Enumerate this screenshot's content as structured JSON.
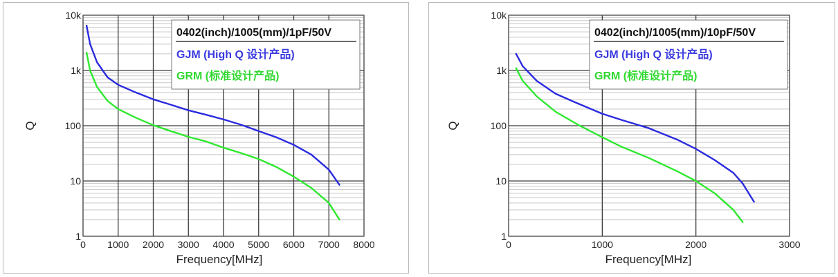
{
  "chart_data": [
    {
      "type": "line",
      "title": "0402(inch)/1005(mm)/1pF/50V",
      "xlabel": "Frequency[MHz]",
      "ylabel": "Q",
      "xlim": [
        0,
        8000
      ],
      "ylim": [
        1,
        10000
      ],
      "yscale": "log",
      "x_ticks": [
        "0",
        "1000",
        "2000",
        "3000",
        "4000",
        "5000",
        "6000",
        "7000",
        "8000"
      ],
      "y_ticks": [
        "1",
        "10",
        "100",
        "1k",
        "10k"
      ],
      "grid": true,
      "legend_position": "top-right",
      "series": [
        {
          "name": "GJM (High Q 设计产品)",
          "color": "#2a2ae0",
          "points": [
            [
              100,
              6500
            ],
            [
              200,
              3000
            ],
            [
              400,
              1400
            ],
            [
              700,
              750
            ],
            [
              1000,
              550
            ],
            [
              1500,
              400
            ],
            [
              2000,
              300
            ],
            [
              2500,
              240
            ],
            [
              3000,
              190
            ],
            [
              3500,
              158
            ],
            [
              4000,
              130
            ],
            [
              4500,
              104
            ],
            [
              5000,
              80
            ],
            [
              5500,
              62
            ],
            [
              6000,
              45
            ],
            [
              6500,
              30
            ],
            [
              7000,
              16
            ],
            [
              7300,
              8.5
            ]
          ]
        },
        {
          "name": "GRM (标准设计产品)",
          "color": "#2ee82e",
          "points": [
            [
              100,
              2100
            ],
            [
              200,
              1000
            ],
            [
              400,
              500
            ],
            [
              700,
              280
            ],
            [
              1000,
              200
            ],
            [
              1500,
              140
            ],
            [
              2000,
              102
            ],
            [
              2500,
              80
            ],
            [
              3000,
              63
            ],
            [
              3500,
              52
            ],
            [
              4000,
              40
            ],
            [
              4500,
              32
            ],
            [
              5000,
              25
            ],
            [
              5500,
              18
            ],
            [
              6000,
              12
            ],
            [
              6500,
              7.5
            ],
            [
              7000,
              4
            ],
            [
              7300,
              2
            ]
          ]
        }
      ]
    },
    {
      "type": "line",
      "title": "0402(inch)/1005(mm)/10pF/50V",
      "xlabel": "Frequency[MHz]",
      "ylabel": "Q",
      "xlim": [
        0,
        3000
      ],
      "ylim": [
        1,
        10000
      ],
      "yscale": "log",
      "x_ticks": [
        "0",
        "1000",
        "2000",
        "3000"
      ],
      "y_ticks": [
        "1",
        "10",
        "100",
        "1k",
        "10k"
      ],
      "grid": true,
      "legend_position": "top-right",
      "series": [
        {
          "name": "GJM (High Q 设计产品)",
          "color": "#2a2ae0",
          "points": [
            [
              80,
              2000
            ],
            [
              150,
              1200
            ],
            [
              300,
              650
            ],
            [
              500,
              380
            ],
            [
              700,
              270
            ],
            [
              1000,
              165
            ],
            [
              1200,
              128
            ],
            [
              1500,
              90
            ],
            [
              1800,
              56
            ],
            [
              2000,
              38
            ],
            [
              2200,
              24
            ],
            [
              2400,
              14
            ],
            [
              2500,
              9
            ],
            [
              2620,
              4.2
            ]
          ]
        },
        {
          "name": "GRM (标准设计产品)",
          "color": "#2ee82e",
          "points": [
            [
              80,
              1100
            ],
            [
              150,
              650
            ],
            [
              300,
              340
            ],
            [
              500,
              180
            ],
            [
              750,
              102
            ],
            [
              1000,
              62
            ],
            [
              1200,
              42
            ],
            [
              1500,
              26
            ],
            [
              1800,
              15
            ],
            [
              2000,
              10
            ],
            [
              2200,
              6
            ],
            [
              2400,
              3
            ],
            [
              2500,
              1.8
            ]
          ]
        }
      ]
    }
  ]
}
